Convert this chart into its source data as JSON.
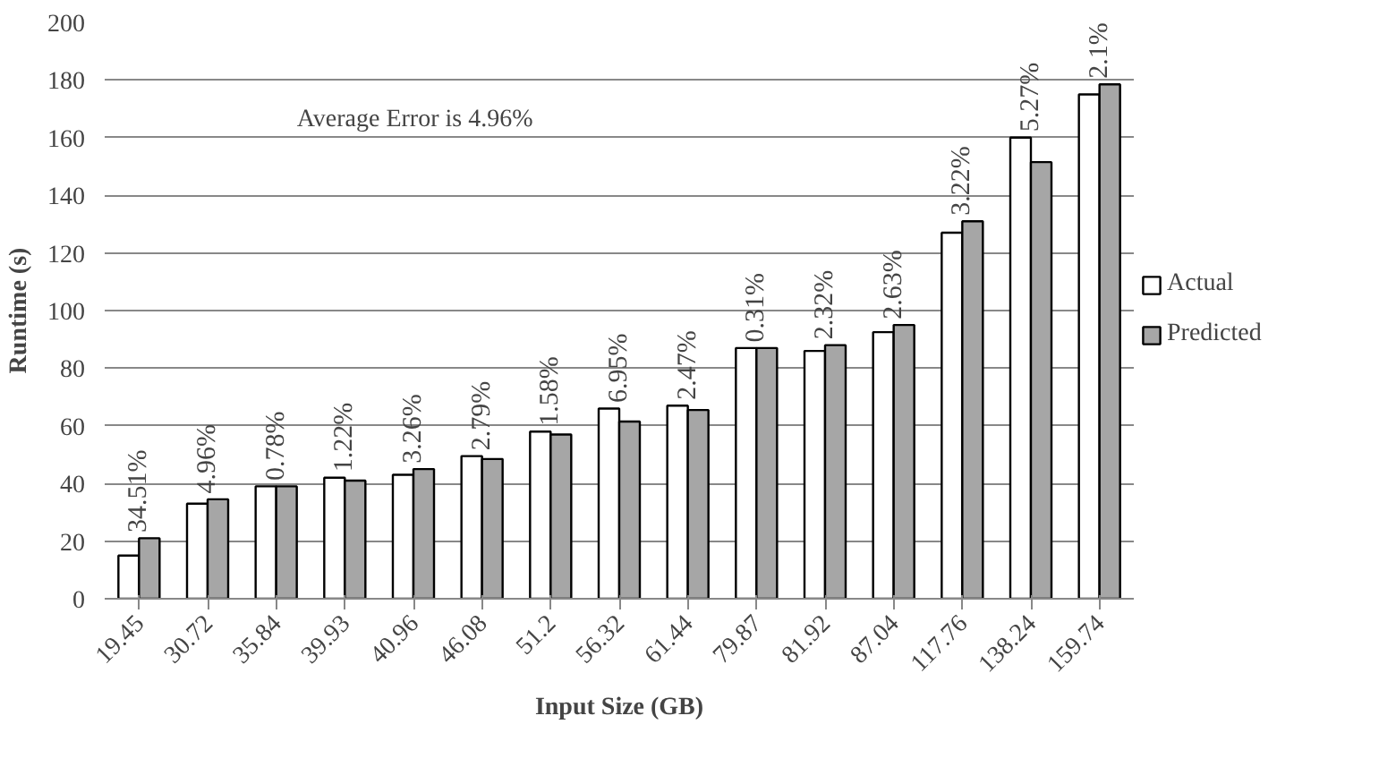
{
  "chart_data": {
    "type": "bar",
    "xlabel": "Input Size (GB)",
    "ylabel": "Runtime (s)",
    "categories": [
      "19.45",
      "30.72",
      "35.84",
      "39.93",
      "40.96",
      "46.08",
      "51.2",
      "56.32",
      "61.44",
      "79.87",
      "81.92",
      "87.04",
      "117.76",
      "138.24",
      "159.74"
    ],
    "series": [
      {
        "name": "Actual",
        "color": "#ffffff",
        "values": [
          15,
          33,
          39,
          42,
          43,
          49.5,
          58,
          66,
          67,
          87,
          86,
          92.5,
          127,
          160,
          175
        ]
      },
      {
        "name": "Predicted",
        "color": "#a6a6a6",
        "values": [
          21,
          34.5,
          39,
          41,
          45,
          48.5,
          57,
          61.5,
          65.5,
          87,
          88,
          95,
          131,
          151.5,
          178.5
        ]
      }
    ],
    "ylim": [
      0,
      200
    ],
    "yticks": [
      0,
      20,
      40,
      60,
      80,
      100,
      120,
      140,
      160,
      180,
      200
    ],
    "grid": "y",
    "legend": "right",
    "annotations": [
      "Average Error is 4.96%",
      {
        "text": "34.51%",
        "x": "19.45",
        "y": 21
      },
      {
        "text": "4.96%",
        "x": "30.72",
        "y": 34.5
      },
      {
        "text": "0.78%",
        "x": "35.84",
        "y": 39
      },
      {
        "text": "1.22%",
        "x": "39.93",
        "y": 42
      },
      {
        "text": "3.26%",
        "x": "40.96",
        "y": 45
      },
      {
        "text": "2.79%",
        "x": "46.08",
        "y": 49.5
      },
      {
        "text": "1.58%",
        "x": "51.2",
        "y": 58
      },
      {
        "text": "6.95%",
        "x": "56.32",
        "y": 66
      },
      {
        "text": "2.47%",
        "x": "61.44",
        "y": 67
      },
      {
        "text": "0.31%",
        "x": "79.87",
        "y": 87
      },
      {
        "text": "2.32%",
        "x": "81.92",
        "y": 88
      },
      {
        "text": "2.63%",
        "x": "87.04",
        "y": 95
      },
      {
        "text": "3.22%",
        "x": "117.76",
        "y": 131
      },
      {
        "text": "5.27%",
        "x": "138.24",
        "y": 160
      },
      {
        "text": "2.1%",
        "x": "159.74",
        "y": 178.5
      }
    ]
  }
}
